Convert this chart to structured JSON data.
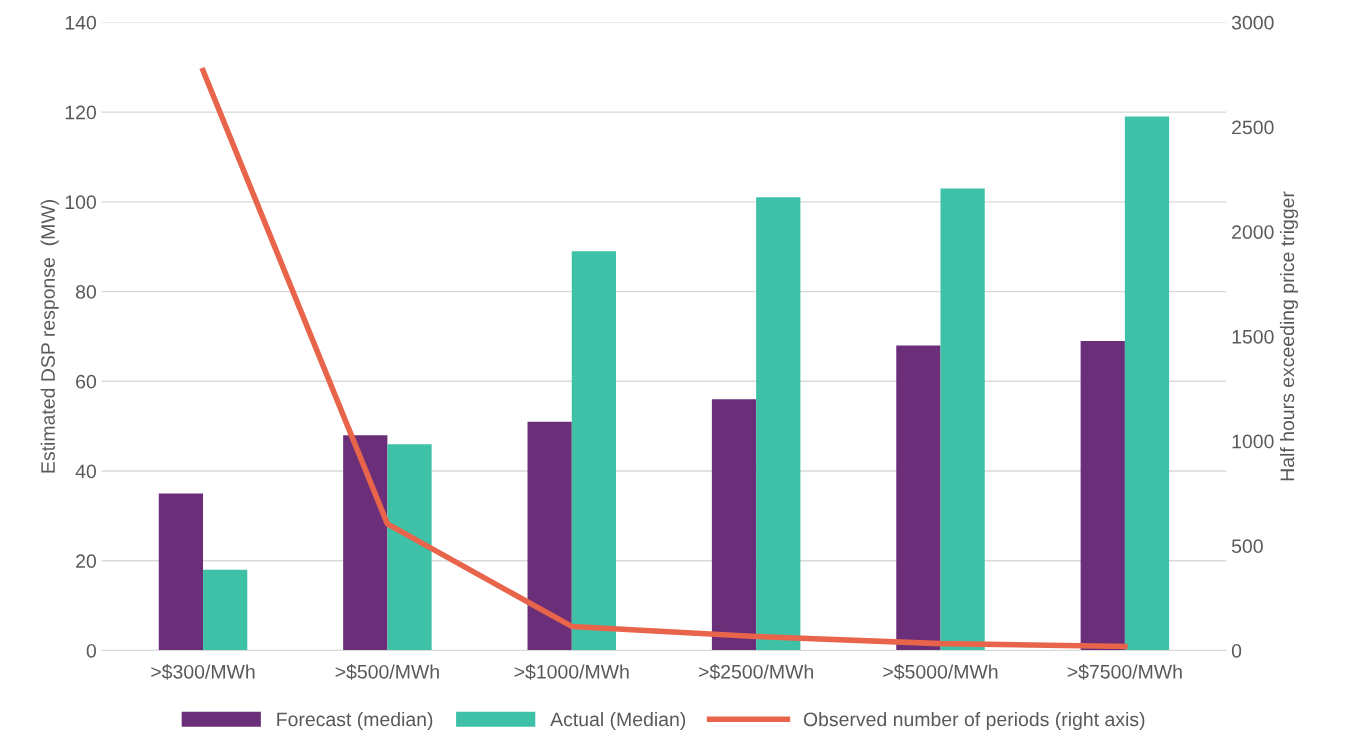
{
  "chart_data": {
    "type": "bar",
    "categories": [
      ">$300/MWh",
      ">$500/MWh",
      ">$1000/MWh",
      ">$2500/MWh",
      ">$5000/MWh",
      ">$7500/MWh"
    ],
    "series": [
      {
        "name": "Forecast (median)",
        "color": "#6b2f7a",
        "values": [
          35,
          48,
          51,
          56,
          68,
          69
        ]
      },
      {
        "name": "Actual (Median)",
        "color": "#3fc1a8",
        "values": [
          18,
          46,
          89,
          101,
          103,
          119
        ]
      },
      {
        "name": "Observed number of periods (right axis)",
        "type": "line",
        "axis": "y2",
        "color": "#e8644a",
        "values": [
          2770,
          605,
          115,
          67,
          33,
          19
        ]
      }
    ],
    "ylabel": "Estimated DSP response  (MW)",
    "y2label": "Half hours exceeding price trigger",
    "ylim": [
      0,
      140
    ],
    "yticks": [
      0,
      20,
      40,
      60,
      80,
      100,
      120,
      140
    ],
    "y2lim": [
      0,
      3000
    ],
    "y2ticks": [
      0,
      500,
      1000,
      1500,
      2000,
      2500,
      3000
    ],
    "grid": "y",
    "legend": "bottom",
    "marker": "none",
    "line_style": "solid"
  }
}
